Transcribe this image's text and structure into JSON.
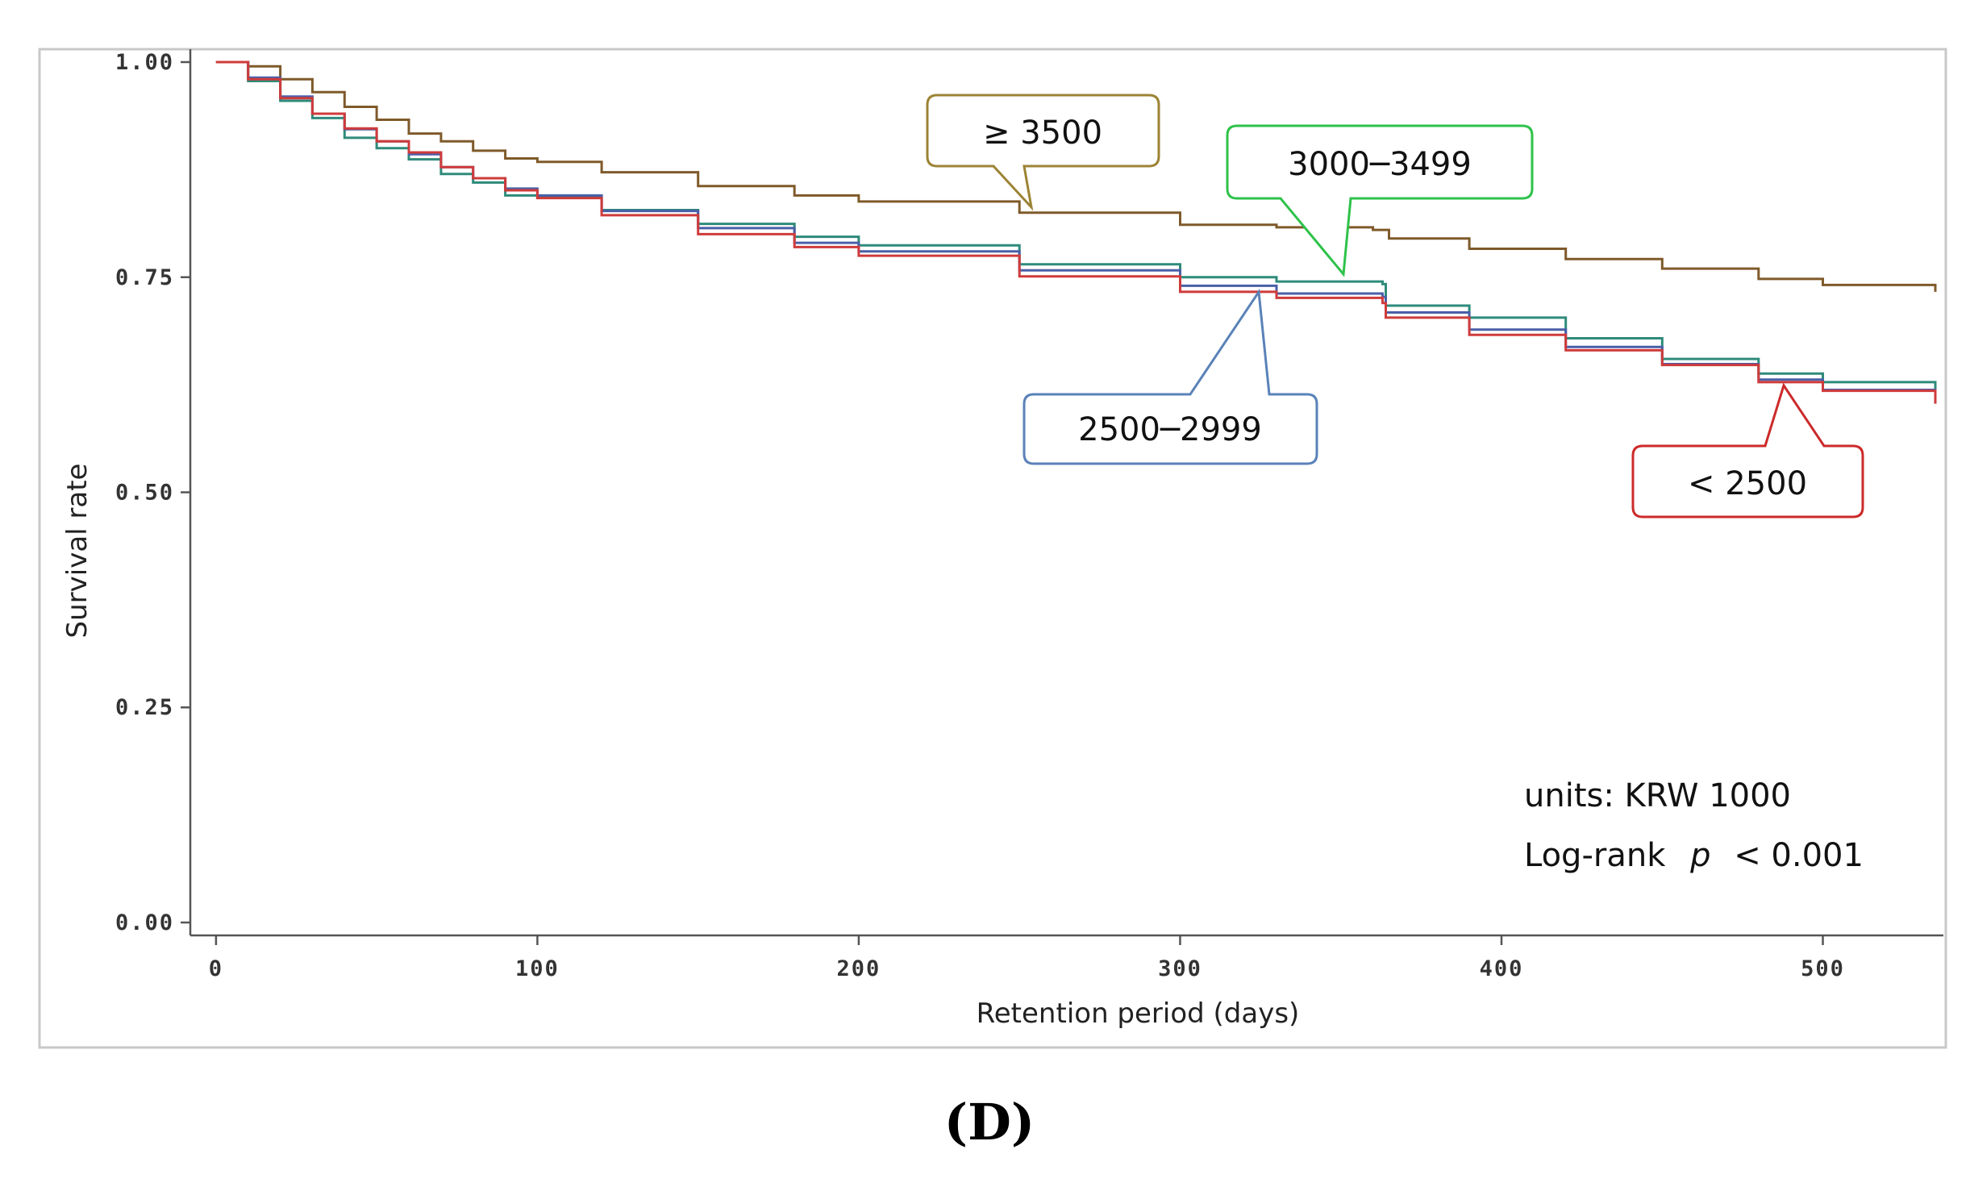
{
  "chart_data": {
    "type": "line",
    "subtype": "kaplan-meier step",
    "panel_label": "(D)",
    "xlabel": "Retention period (days)",
    "ylabel": "Survival rate",
    "xlim": [
      -8,
      535
    ],
    "ylim": [
      -0.015,
      1.015
    ],
    "x_ticks": [
      0,
      100,
      200,
      300,
      400,
      500
    ],
    "x_tick_labels": [
      "0",
      "100",
      "200",
      "300",
      "400",
      "500"
    ],
    "y_ticks": [
      0,
      0.25,
      0.5,
      0.75,
      1.0
    ],
    "y_tick_labels": [
      "0.00",
      "0.25",
      "0.50",
      "0.75",
      "1.00"
    ],
    "grid": false,
    "notes": [
      "units: KRW 1000",
      "Log-rank",
      "p",
      "< 0.001"
    ],
    "series": [
      {
        "name": "≥ 3500",
        "color": "#7f5a2a",
        "callout_border": "#9c8334",
        "x": [
          0,
          10,
          20,
          30,
          40,
          50,
          60,
          70,
          80,
          90,
          100,
          120,
          150,
          180,
          200,
          250,
          300,
          330,
          360,
          365,
          390,
          420,
          450,
          480,
          500,
          535
        ],
        "y": [
          1.0,
          0.995,
          0.98,
          0.965,
          0.948,
          0.933,
          0.917,
          0.908,
          0.897,
          0.888,
          0.884,
          0.872,
          0.856,
          0.845,
          0.838,
          0.825,
          0.811,
          0.808,
          0.805,
          0.795,
          0.783,
          0.771,
          0.76,
          0.748,
          0.741,
          0.733
        ]
      },
      {
        "name": "3000─3499",
        "color": "#2e8b7a",
        "callout_border": "#2ec24a",
        "x": [
          0,
          10,
          20,
          30,
          40,
          50,
          60,
          70,
          80,
          90,
          100,
          120,
          150,
          180,
          200,
          250,
          300,
          330,
          363,
          364,
          390,
          420,
          450,
          480,
          500,
          535
        ],
        "y": [
          1.0,
          0.978,
          0.955,
          0.935,
          0.912,
          0.9,
          0.887,
          0.87,
          0.86,
          0.845,
          0.843,
          0.828,
          0.812,
          0.797,
          0.787,
          0.765,
          0.75,
          0.745,
          0.742,
          0.717,
          0.703,
          0.679,
          0.655,
          0.638,
          0.628,
          0.617
        ]
      },
      {
        "name": "2500─2999",
        "color": "#4a5fa8",
        "callout_border": "#5a82b8",
        "x": [
          0,
          10,
          20,
          30,
          40,
          50,
          60,
          70,
          80,
          90,
          100,
          120,
          150,
          180,
          200,
          250,
          300,
          330,
          363,
          364,
          390,
          420,
          450,
          480,
          500,
          535
        ],
        "y": [
          1.0,
          0.982,
          0.96,
          0.94,
          0.922,
          0.908,
          0.893,
          0.878,
          0.865,
          0.853,
          0.845,
          0.827,
          0.807,
          0.79,
          0.78,
          0.758,
          0.74,
          0.731,
          0.727,
          0.709,
          0.689,
          0.669,
          0.649,
          0.631,
          0.619,
          0.604
        ]
      },
      {
        "name": "< 2500",
        "color": "#cf3b3b",
        "callout_border": "#cc2a2a",
        "x": [
          0,
          10,
          20,
          30,
          40,
          50,
          60,
          70,
          80,
          90,
          100,
          120,
          150,
          180,
          200,
          250,
          300,
          330,
          363,
          364,
          390,
          420,
          450,
          480,
          500,
          535
        ],
        "y": [
          1.0,
          0.98,
          0.958,
          0.94,
          0.923,
          0.908,
          0.895,
          0.878,
          0.865,
          0.851,
          0.842,
          0.822,
          0.8,
          0.785,
          0.775,
          0.751,
          0.733,
          0.726,
          0.72,
          0.703,
          0.683,
          0.665,
          0.648,
          0.628,
          0.618,
          0.603
        ]
      }
    ]
  }
}
